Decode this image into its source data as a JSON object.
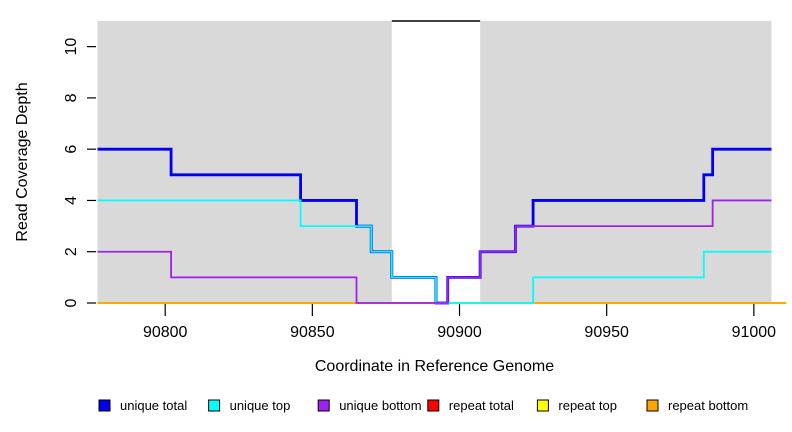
{
  "figure": {
    "background": "#FFFFFF"
  },
  "chart_data": {
    "type": "line",
    "subtype": "step",
    "title": "",
    "xlabel": "Coordinate in Reference Genome",
    "ylabel": "Read Coverage Depth",
    "xlim": [
      90777,
      91006
    ],
    "ylim": [
      0,
      11
    ],
    "x_ticks": [
      90800,
      90850,
      90900,
      90950,
      91000
    ],
    "y_ticks": [
      0,
      2,
      4,
      6,
      8,
      10
    ],
    "grid": false,
    "panel_color": "#D9D9D9",
    "axis_color": "#000000",
    "repeat_region": {
      "x_start": 90877,
      "x_end": 90907,
      "fill": "#FFFFFF",
      "marker_y": 11,
      "marker_color": "#000000"
    },
    "series": [
      {
        "name": "unique total",
        "color": "#0000EE",
        "line_width": 2.8,
        "x_end": 91006,
        "steps": [
          [
            90777,
            6
          ],
          [
            90802,
            5
          ],
          [
            90846,
            4
          ],
          [
            90865,
            3
          ],
          [
            90870,
            2
          ],
          [
            90877,
            1
          ],
          [
            90892,
            0
          ],
          [
            90896,
            1
          ],
          [
            90907,
            2
          ],
          [
            90919,
            3
          ],
          [
            90925,
            4
          ],
          [
            90983,
            5
          ],
          [
            90986,
            6
          ]
        ]
      },
      {
        "name": "unique top",
        "color": "#00FFFF",
        "line_width": 1.8,
        "x_end": 91006,
        "steps": [
          [
            90777,
            4
          ],
          [
            90846,
            3
          ],
          [
            90870,
            2
          ],
          [
            90877,
            1
          ],
          [
            90892,
            0
          ],
          [
            90925,
            1
          ],
          [
            90983,
            2
          ]
        ]
      },
      {
        "name": "unique bottom",
        "color": "#A020F0",
        "line_width": 1.8,
        "x_end": 91006,
        "steps": [
          [
            90777,
            2
          ],
          [
            90802,
            1
          ],
          [
            90865,
            0
          ],
          [
            90896,
            1
          ],
          [
            90907,
            2
          ],
          [
            90919,
            3
          ],
          [
            90986,
            4
          ]
        ]
      },
      {
        "name": "repeat total",
        "color": "#FF0000",
        "line_width": 1.8,
        "x_end": 91011,
        "steps": [
          [
            90777,
            0
          ]
        ]
      },
      {
        "name": "repeat top",
        "color": "#FFFF00",
        "line_width": 1.8,
        "x_end": 91011,
        "steps": [
          [
            90777,
            0
          ]
        ]
      },
      {
        "name": "repeat bottom",
        "color": "#FFA500",
        "line_width": 1.8,
        "x_end": 91011,
        "steps": [
          [
            90777,
            0
          ]
        ]
      }
    ],
    "draw_order": [
      "repeat total",
      "repeat top",
      "repeat bottom",
      "unique total",
      "unique top",
      "unique bottom"
    ],
    "legend": {
      "position": "bottom",
      "items": [
        "unique total",
        "unique top",
        "unique bottom",
        "repeat total",
        "repeat top",
        "repeat bottom"
      ]
    }
  }
}
